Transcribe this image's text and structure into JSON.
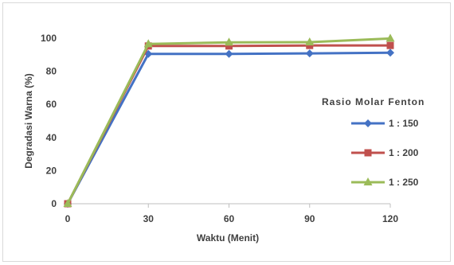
{
  "chart_data": {
    "type": "line",
    "title": "",
    "xlabel": "Waktu (Menit)",
    "ylabel": "Degradasi Warna (%)",
    "x": [
      0,
      30,
      60,
      90,
      120
    ],
    "xticks": [
      "0",
      "30",
      "60",
      "90",
      "120"
    ],
    "ylim": [
      0,
      100
    ],
    "yticks": [
      "0",
      "20",
      "40",
      "60",
      "80",
      "100"
    ],
    "grid": false,
    "legend": {
      "title": "Rasio Molar Fenton",
      "position": "right"
    },
    "series": [
      {
        "name": "1 : 150",
        "color": "#4472c4",
        "marker": "diamond",
        "values": [
          0,
          90.5,
          90.5,
          90.8,
          91.2
        ]
      },
      {
        "name": "1 : 200",
        "color": "#c0504d",
        "marker": "square",
        "values": [
          0,
          95.3,
          95.3,
          95.6,
          95.6
        ]
      },
      {
        "name": "1 : 250",
        "color": "#9bbb59",
        "marker": "triangle",
        "values": [
          0,
          96.5,
          97.5,
          97.6,
          99.8
        ]
      }
    ]
  }
}
